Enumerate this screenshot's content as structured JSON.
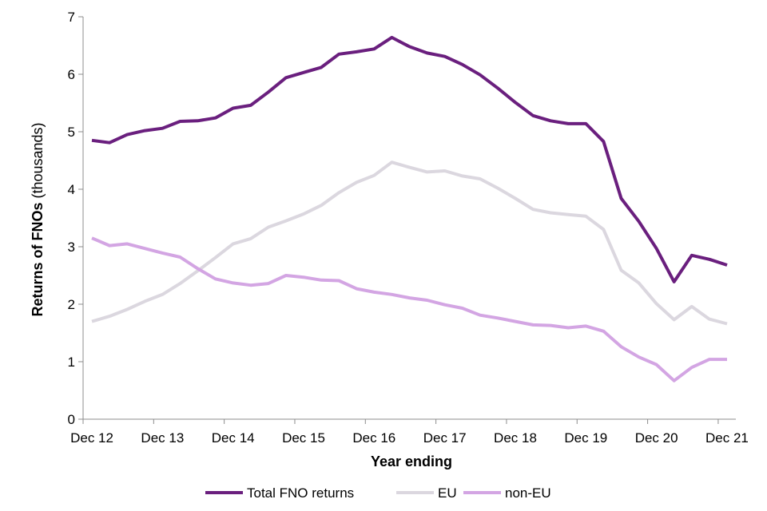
{
  "chart_data": {
    "type": "line",
    "xlabel": "Year ending",
    "ylabel_bold": "Returns of FNOs",
    "ylabel_rest": " (thousands)",
    "ylim": [
      0,
      7
    ],
    "yticks": [
      "0",
      "1",
      "2",
      "3",
      "4",
      "5",
      "6",
      "7"
    ],
    "xtick_labels": [
      "Dec 12",
      "Dec 13",
      "Dec 14",
      "Dec 15",
      "Dec 16",
      "Dec 17",
      "Dec 18",
      "Dec 19",
      "Dec 20",
      "Dec 21"
    ],
    "legend_position": "bottom",
    "grid": false,
    "x": [
      "Dec 12",
      "Mar 13",
      "Jun 13",
      "Sep 13",
      "Dec 13",
      "Mar 14",
      "Jun 14",
      "Sep 14",
      "Dec 14",
      "Mar 15",
      "Jun 15",
      "Sep 15",
      "Dec 15",
      "Mar 16",
      "Jun 16",
      "Sep 16",
      "Dec 16",
      "Mar 17",
      "Jun 17",
      "Sep 17",
      "Dec 17",
      "Mar 18",
      "Jun 18",
      "Sep 18",
      "Dec 18",
      "Mar 19",
      "Jun 19",
      "Sep 19",
      "Dec 19",
      "Mar 20",
      "Jun 20",
      "Sep 20",
      "Dec 20",
      "Mar 21",
      "Jun 21",
      "Sep 21",
      "Dec 21"
    ],
    "series": [
      {
        "name": "Total FNO returns",
        "color": "#6a1f7e",
        "values": [
          4.85,
          4.81,
          4.95,
          5.02,
          5.06,
          5.18,
          5.19,
          5.24,
          5.41,
          5.46,
          5.69,
          5.94,
          6.03,
          6.12,
          6.35,
          6.39,
          6.44,
          6.64,
          6.48,
          6.37,
          6.31,
          6.17,
          5.99,
          5.76,
          5.51,
          5.28,
          5.19,
          5.14,
          5.14,
          4.83,
          3.84,
          3.44,
          2.97,
          2.39,
          2.85,
          2.78,
          2.68
        ]
      },
      {
        "name": "EU",
        "color": "#dbd7df",
        "values": [
          1.7,
          1.79,
          1.91,
          2.05,
          2.17,
          2.36,
          2.58,
          2.81,
          3.05,
          3.14,
          3.34,
          3.45,
          3.57,
          3.72,
          3.94,
          4.12,
          4.24,
          4.47,
          4.38,
          4.3,
          4.32,
          4.23,
          4.18,
          4.02,
          3.84,
          3.65,
          3.59,
          3.56,
          3.53,
          3.3,
          2.59,
          2.37,
          2.01,
          1.73,
          1.96,
          1.74,
          1.66
        ]
      },
      {
        "name": "non-EU",
        "color": "#d3a5e3",
        "values": [
          3.15,
          3.02,
          3.05,
          2.97,
          2.89,
          2.82,
          2.62,
          2.44,
          2.37,
          2.33,
          2.36,
          2.5,
          2.47,
          2.42,
          2.41,
          2.27,
          2.21,
          2.17,
          2.11,
          2.07,
          1.99,
          1.93,
          1.81,
          1.76,
          1.7,
          1.64,
          1.63,
          1.59,
          1.62,
          1.53,
          1.26,
          1.08,
          0.95,
          0.67,
          0.9,
          1.04,
          1.04
        ]
      }
    ]
  }
}
